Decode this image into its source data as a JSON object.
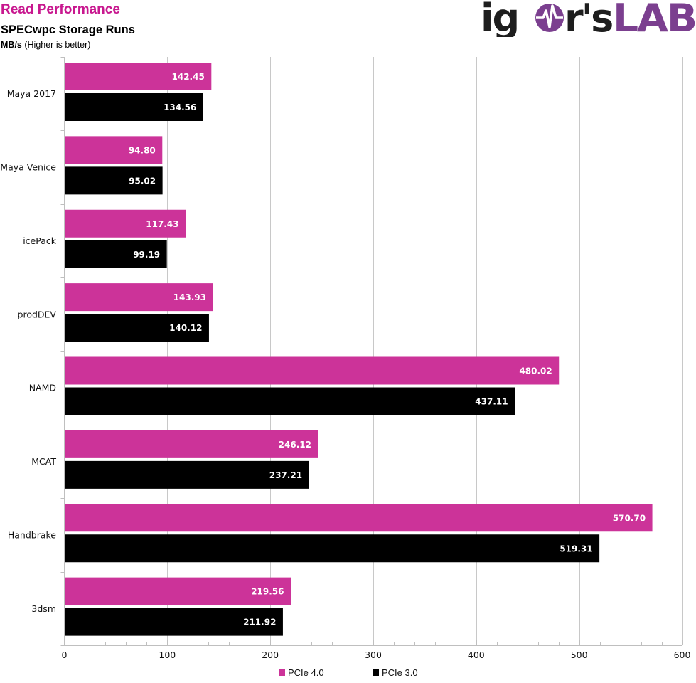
{
  "header": {
    "title": "Read Performance",
    "subtitle": "SPECwpc Storage  Runs",
    "unit": "MB/s",
    "note": "(Higher is better)"
  },
  "logo": {
    "text_dark": "ig",
    "text_dark2": "rs",
    "text_accent": "LAB",
    "dark_color": "#1e1e1e",
    "accent_color": "#7b3f8f"
  },
  "chart_data": {
    "type": "bar",
    "orientation": "horizontal",
    "title": "Read Performance",
    "subtitle": "SPECwpc Storage  Runs",
    "xlabel": "MB/s (Higher is better)",
    "ylabel": "",
    "xlim": [
      0,
      600
    ],
    "x_ticks": [
      0,
      100,
      200,
      300,
      400,
      500,
      600
    ],
    "x_tick_labels": [
      "0",
      "100",
      "200",
      "300",
      "400",
      "500",
      "600"
    ],
    "grid": true,
    "legend_position": "bottom",
    "categories": [
      "Maya 2017",
      "Maya Venice",
      "icePack",
      "prodDEV",
      "NAMD",
      "MCAT",
      "Handbrake",
      "3dsm"
    ],
    "series": [
      {
        "name": "PCIe 4.0",
        "color": "#cc3399",
        "values": [
          142.45,
          94.8,
          117.43,
          143.93,
          480.02,
          246.12,
          570.7,
          219.56
        ],
        "labels": [
          "142.45",
          "94.80",
          "117.43",
          "143.93",
          "480.02",
          "246.12",
          "570.70",
          "219.56"
        ]
      },
      {
        "name": "PCIe 3.0",
        "color": "#000000",
        "values": [
          134.56,
          95.02,
          99.19,
          140.12,
          437.11,
          237.21,
          519.31,
          211.92
        ],
        "labels": [
          "134.56",
          "95.02",
          "99.19",
          "140.12",
          "437.11",
          "237.21",
          "519.31",
          "211.92"
        ]
      }
    ]
  }
}
